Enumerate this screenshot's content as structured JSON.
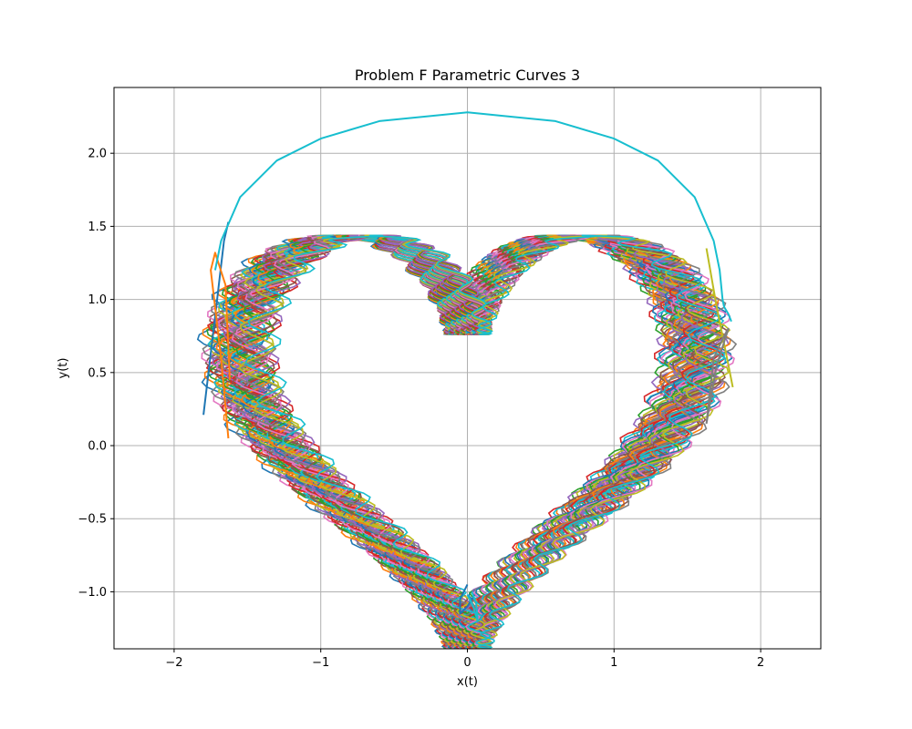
{
  "chart_data": {
    "type": "line",
    "title": "Problem F Parametric Curves 3",
    "xlabel": "x(t)",
    "ylabel": "y(t)",
    "xlim": [
      -2.41,
      2.41
    ],
    "ylim": [
      -1.39,
      2.45
    ],
    "xticks": [
      -2,
      -1,
      0,
      1,
      2
    ],
    "xtick_labels": [
      "−2",
      "−1",
      "0",
      "1",
      "2"
    ],
    "yticks": [
      -1.0,
      -0.5,
      0.0,
      0.5,
      1.0,
      1.5,
      2.0
    ],
    "ytick_labels": [
      "−1.0",
      "−0.5",
      "0.0",
      "0.5",
      "1.0",
      "1.5",
      "2.0"
    ],
    "grid": true,
    "palette": [
      "#1f77b4",
      "#ff7f0e",
      "#2ca02c",
      "#d62728",
      "#9467bd",
      "#8c564b",
      "#e377c2",
      "#7f7f7f",
      "#bcbd22",
      "#17becf"
    ],
    "series": [
      {
        "color": "#1f77b4",
        "x": [
          -1.8,
          -1.73,
          -1.66,
          -1.63
        ],
        "y": [
          0.21,
          0.8,
          1.4,
          1.53
        ]
      },
      {
        "color": "#ff7f0e",
        "x": [
          -1.63,
          -1.68,
          -1.75,
          -1.72,
          -1.65,
          -1.62
        ],
        "y": [
          0.05,
          0.6,
          1.2,
          1.32,
          1.1,
          0.45
        ]
      },
      {
        "color": "#17becf",
        "x": [
          -1.72,
          -1.68,
          -1.55,
          -1.3,
          -1.0,
          -0.6,
          0.0,
          0.6,
          1.0,
          1.3,
          1.55,
          1.68,
          1.72,
          1.74,
          1.75,
          1.78,
          1.8
        ],
        "y": [
          1.2,
          1.4,
          1.7,
          1.95,
          2.1,
          2.22,
          2.28,
          2.22,
          2.1,
          1.95,
          1.7,
          1.4,
          1.2,
          1.0,
          0.95,
          0.9,
          0.85
        ]
      },
      {
        "color": "#1f77b4",
        "x": [
          0.0,
          -0.05,
          -0.05,
          0.0,
          0.05
        ],
        "y": [
          -0.95,
          -1.05,
          -1.15,
          -1.1,
          -1.02
        ]
      },
      {
        "color": "#17becf",
        "x": [
          0.0,
          0.04,
          0.07,
          0.06,
          0.03
        ],
        "y": [
          -1.02,
          -1.1,
          -1.2,
          -1.08,
          -1.0
        ]
      },
      {
        "color": "#bcbd22",
        "x": [
          1.63,
          1.7,
          1.76,
          1.81
        ],
        "y": [
          1.35,
          0.95,
          0.65,
          0.4
        ]
      },
      {
        "color": "#7f7f7f",
        "x": [
          1.63,
          1.7,
          1.78,
          1.75,
          1.68,
          1.63
        ],
        "y": [
          0.15,
          0.55,
          0.8,
          0.75,
          0.6,
          0.15
        ]
      }
    ],
    "family": {
      "description_shape": "heart curve x=1.6sin^3(s), y=1.3cos(s)-0.5cos(2s)-0.2cos(3s)-0.1cos(4s)",
      "count": 60,
      "x_range": [
        -1.65,
        1.65
      ],
      "y_range": [
        -1.0,
        1.63
      ]
    }
  }
}
